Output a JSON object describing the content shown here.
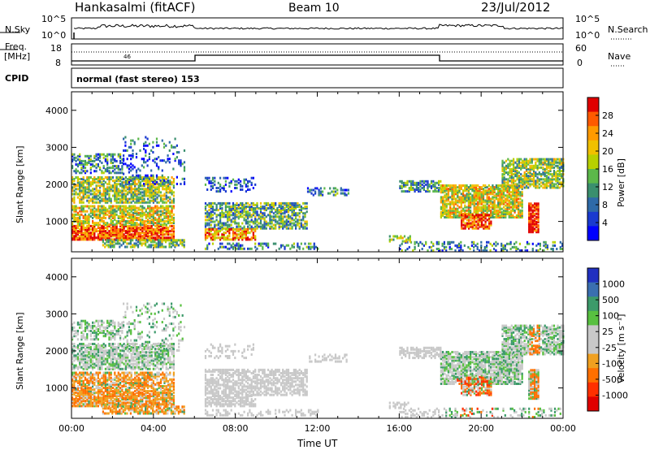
{
  "header": {
    "station": "Hankasalmi (fitACF)",
    "beam": "Beam 10",
    "date": "23/Jul/2012"
  },
  "summary": {
    "nsky_label": "N.Sky",
    "nsky_ticks": [
      "10^5",
      "10^0"
    ],
    "nsearch_label": "N.Search",
    "nsearch_ticks": [
      "10^5",
      "10^0"
    ],
    "freq_label_1": "Freq.",
    "freq_label_2": "[MHz]",
    "freq_ticks": [
      "18",
      "8"
    ],
    "nave_label": "Nave",
    "nave_ticks": [
      "60",
      "0"
    ],
    "cpid_label": "CPID",
    "cpid_text": "normal (fast stereo) 153",
    "freq_annotation": "46"
  },
  "chart_data": [
    {
      "type": "heatmap",
      "name": "power-panel",
      "ylabel": "Slant Range [km]",
      "xlabel": "",
      "yticks": [
        "4000",
        "3000",
        "2000",
        "1000"
      ],
      "ylim": [
        180,
        4500
      ],
      "colorbar_label": "Power [dB]",
      "colorbar_ticks": [
        "28",
        "24",
        "20",
        "16",
        "12",
        "8",
        "4"
      ],
      "colorbar_colors": [
        "#e00000",
        "#ff5a00",
        "#ff9a00",
        "#f0c000",
        "#b8d000",
        "#5cb84a",
        "#3a8f6e",
        "#2e6aa8",
        "#1a3ad0",
        "#0000ff"
      ]
    },
    {
      "type": "heatmap",
      "name": "velocity-panel",
      "ylabel": "Slant Range [km]",
      "xlabel": "Time UT",
      "yticks": [
        "4000",
        "3000",
        "2000",
        "1000"
      ],
      "ylim": [
        180,
        4500
      ],
      "xticks": [
        "00:00",
        "04:00",
        "08:00",
        "12:00",
        "16:00",
        "20:00",
        "00:00"
      ],
      "colorbar_label": "Velocity [m s⁻¹]",
      "colorbar_ticks": [
        "1000",
        "500",
        "100",
        "25",
        "-25",
        "-100",
        "-500",
        "-1000"
      ],
      "colorbar_colors": [
        "#2030c0",
        "#3a6fb0",
        "#3c9a6a",
        "#58c040",
        "#c8c8c8",
        "#c8c8c8",
        "#f0a020",
        "#ff7000",
        "#ff3000",
        "#e00000"
      ]
    }
  ]
}
